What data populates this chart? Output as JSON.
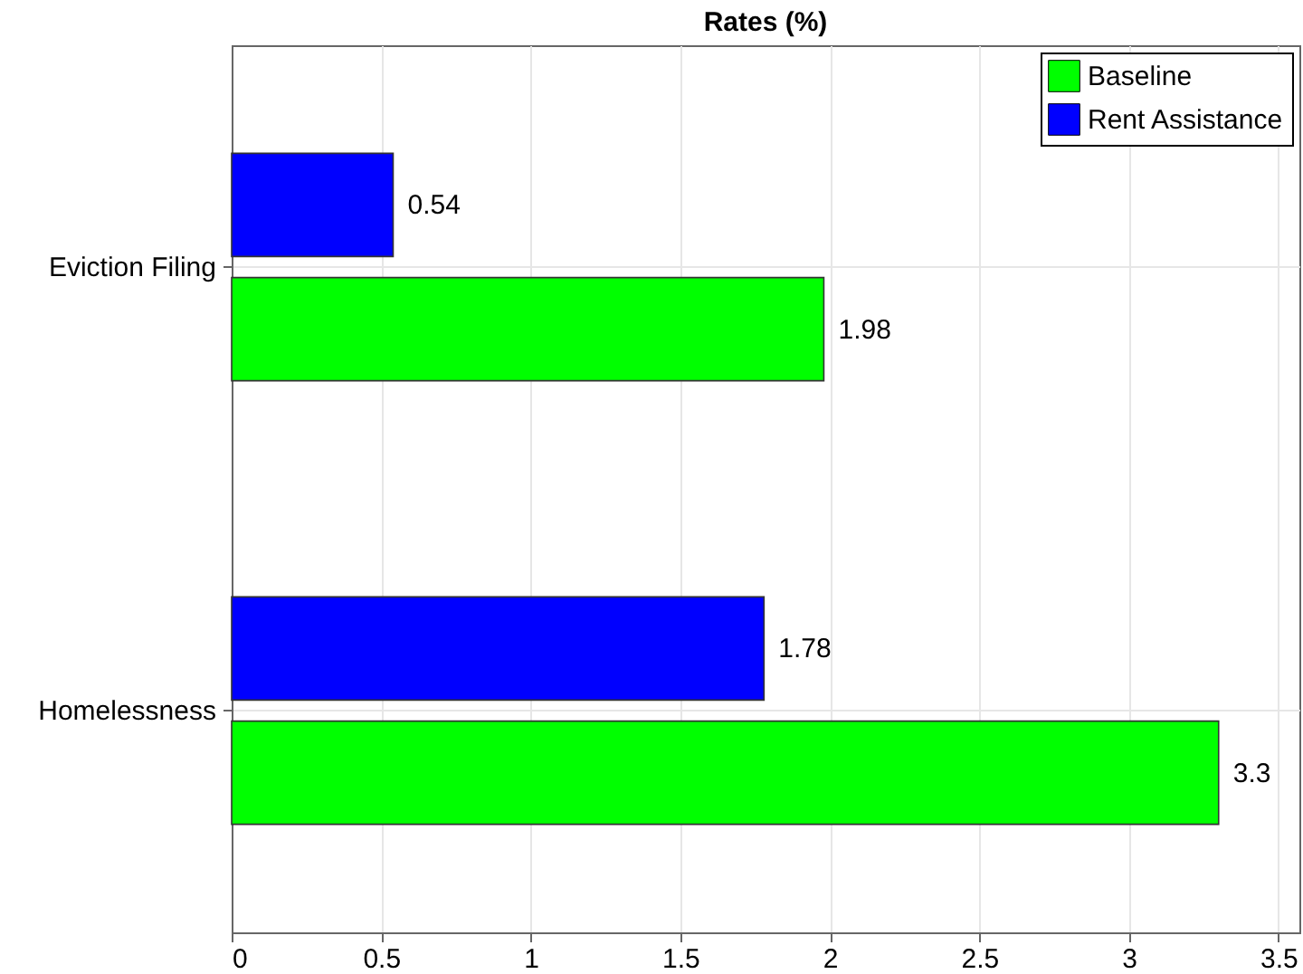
{
  "chart_data": {
    "type": "bar",
    "orientation": "horizontal",
    "title": "Rates (%)",
    "categories": [
      "Eviction Filing",
      "Homelessness"
    ],
    "series": [
      {
        "name": "Baseline",
        "color": "#00ff00",
        "values": [
          1.98,
          3.3
        ]
      },
      {
        "name": "Rent Assistance",
        "color": "#0000ff",
        "values": [
          0.54,
          1.78
        ]
      }
    ],
    "xlim": [
      0,
      3.57
    ],
    "xticks": [
      0,
      0.5,
      1,
      1.5,
      2,
      2.5,
      3,
      3.5
    ],
    "grid": true,
    "legend": "top right",
    "data_labels": true
  }
}
